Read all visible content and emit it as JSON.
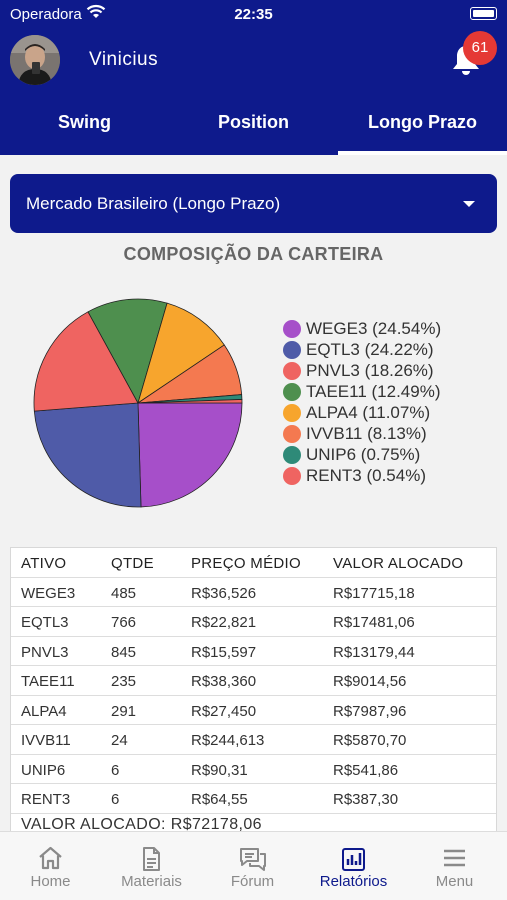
{
  "status_bar": {
    "carrier": "Operadora",
    "time": "22:35"
  },
  "header": {
    "username": "Vinicius",
    "notification_count": "61"
  },
  "tabs": [
    {
      "label": "Swing",
      "active": false
    },
    {
      "label": "Position",
      "active": false
    },
    {
      "label": "Longo Prazo",
      "active": true
    }
  ],
  "market_select": {
    "selected": "Mercado Brasileiro (Longo Prazo)"
  },
  "portfolio": {
    "title": "COMPOSIÇÃO DA CARTEIRA"
  },
  "chart_data": {
    "type": "pie",
    "title": "",
    "slices": [
      {
        "label": "WEGE3 (24.54%)",
        "name": "WEGE3",
        "value": 24.54,
        "color": "#a64fc9"
      },
      {
        "label": "EQTL3 (24.22%)",
        "name": "EQTL3",
        "value": 24.22,
        "color": "#4f5ba8"
      },
      {
        "label": "PNVL3 (18.26%)",
        "name": "PNVL3",
        "value": 18.26,
        "color": "#ef6461"
      },
      {
        "label": "TAEE11 (12.49%)",
        "name": "TAEE11",
        "value": 12.49,
        "color": "#4e8f4e"
      },
      {
        "label": "ALPA4 (11.07%)",
        "name": "ALPA4",
        "value": 11.07,
        "color": "#f7a52d"
      },
      {
        "label": "IVVB11 (8.13%)",
        "name": "IVVB11",
        "value": 8.13,
        "color": "#f47950"
      },
      {
        "label": "UNIP6 (0.75%)",
        "name": "UNIP6",
        "value": 0.75,
        "color": "#2e8a78"
      },
      {
        "label": "RENT3 (0.54%)",
        "name": "RENT3",
        "value": 0.54,
        "color": "#ef6461"
      }
    ],
    "legend_position": "right"
  },
  "table": {
    "headers": [
      "ATIVO",
      "QTDE",
      "PREÇO MÉDIO",
      "VALOR ALOCADO"
    ],
    "rows": [
      [
        "WEGE3",
        "485",
        "R$36,526",
        "R$17715,18"
      ],
      [
        "EQTL3",
        "766",
        "R$22,821",
        "R$17481,06"
      ],
      [
        "PNVL3",
        "845",
        "R$15,597",
        "R$13179,44"
      ],
      [
        "TAEE11",
        "235",
        "R$38,360",
        "R$9014,56"
      ],
      [
        "ALPA4",
        "291",
        "R$27,450",
        "R$7987,96"
      ],
      [
        "IVVB11",
        "24",
        "R$244,613",
        "R$5870,70"
      ],
      [
        "UNIP6",
        "6",
        "R$90,31",
        "R$541,86"
      ],
      [
        "RENT3",
        "6",
        "R$64,55",
        "R$387,30"
      ]
    ],
    "total": "VALOR ALOCADO: R$72178,06"
  },
  "bottom_nav": [
    {
      "label": "Home",
      "icon": "home-icon",
      "active": false
    },
    {
      "label": "Materiais",
      "icon": "document-icon",
      "active": false
    },
    {
      "label": "Fórum",
      "icon": "chat-icon",
      "active": false
    },
    {
      "label": "Relatórios",
      "icon": "bar-chart-icon",
      "active": true
    },
    {
      "label": "Menu",
      "icon": "menu-icon",
      "active": false
    }
  ],
  "colors": {
    "primary": "#0e1a8c",
    "badge": "#e53935",
    "inactive": "#8a8a8a"
  }
}
